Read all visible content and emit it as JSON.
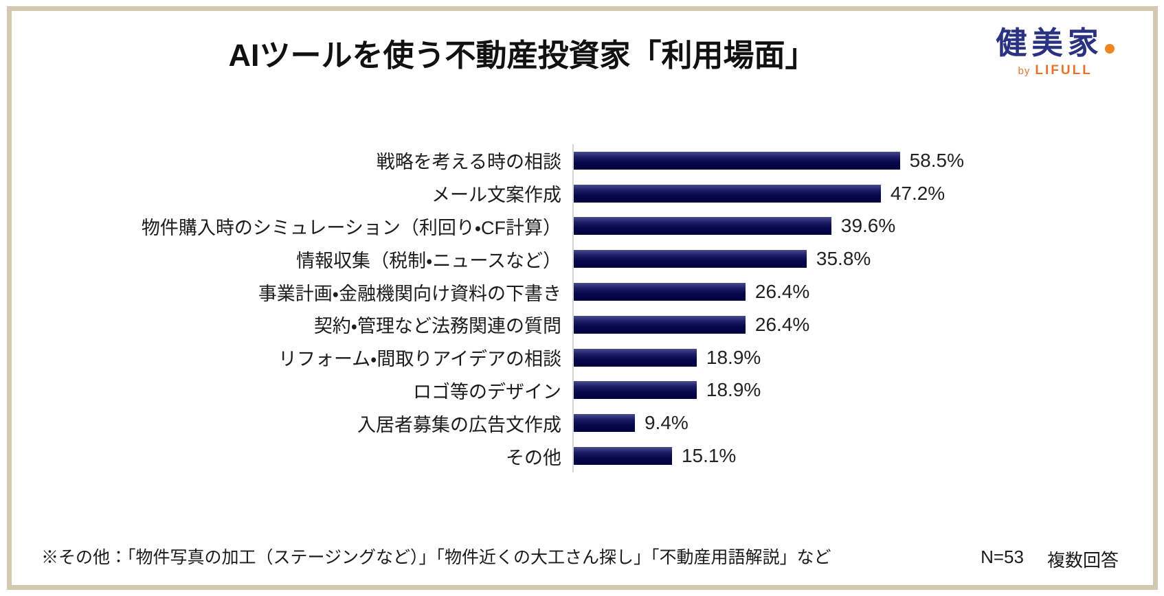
{
  "header": {
    "title": "AIツールを使う不動産投資家「利用場面」",
    "logo": {
      "brand": "健美家",
      "byline_by": "by",
      "byline_brand": "LIFULL",
      "brand_color": "#2c3282",
      "accent_color": "#e8722c",
      "dot_color": "#ef8621"
    }
  },
  "chart_data": {
    "type": "bar",
    "orientation": "horizontal",
    "title": "AIツールを使う不動産投資家「利用場面」",
    "categories": [
      "戦略を考える時の相談",
      "メール文案作成",
      "物件購入時のシミュレーション（利回り・CF計算）",
      "情報収集（税制・ニュースなど）",
      "事業計画・金融機関向け資料の下書き",
      "契約・管理など法務関連の質問",
      "リフォーム・間取りアイデアの相談",
      "ロゴ等のデザイン",
      "入居者募集の広告文作成",
      "その他"
    ],
    "values": [
      58.5,
      47.2,
      39.6,
      35.8,
      26.4,
      26.4,
      18.9,
      18.9,
      9.4,
      15.1
    ],
    "value_labels": [
      "58.5%",
      "47.2%",
      "39.6%",
      "35.8%",
      "26.4%",
      "26.4%",
      "18.9%",
      "18.9%",
      "9.4%",
      "15.1%"
    ],
    "xlabel": "",
    "ylabel": "",
    "xlim": [
      0,
      60
    ],
    "grid": false,
    "legend": false,
    "bar_color_top": "#4b4b8f",
    "bar_color_bottom": "#02023e",
    "axis_line_color": "#d6d6d6"
  },
  "footer": {
    "note": "※その他：「物件写真の加工（ステージングなど）」「物件近くの大工さん探し」「不動産用語解説」など",
    "sample_size": "N=53",
    "answer_type": "複数回答"
  },
  "frame": {
    "border_color": "#d3c9b0"
  }
}
